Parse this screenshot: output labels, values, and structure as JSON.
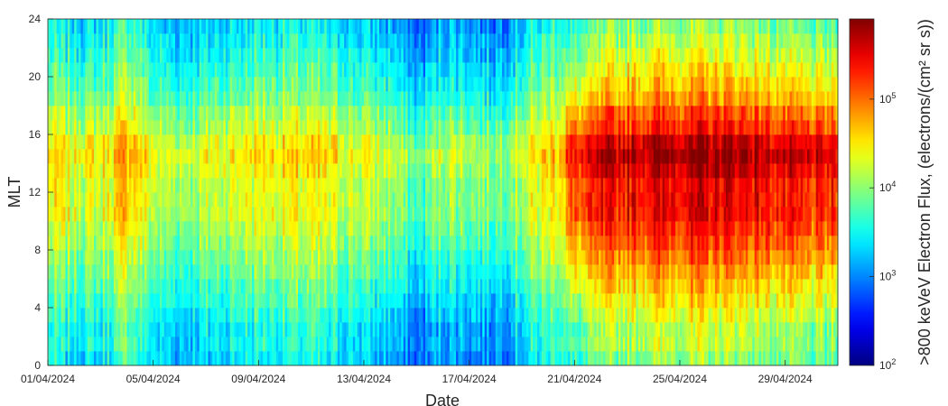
{
  "chart_data": {
    "type": "heatmap",
    "xlabel": "Date",
    "ylabel": "MLT",
    "colorbar_label": ">800 keVeV Electron Flux, (electrons/(cm² sr s))",
    "x_range": [
      "01/04/2024",
      "01/05/2024"
    ],
    "x_ticks": [
      "01/04/2024",
      "05/04/2024",
      "09/04/2024",
      "13/04/2024",
      "17/04/2024",
      "21/04/2024",
      "25/04/2024",
      "29/04/2024"
    ],
    "y_range": [
      0,
      24
    ],
    "y_ticks": [
      0,
      4,
      8,
      12,
      16,
      20,
      24
    ],
    "color_scale": "log",
    "colormap": "jet",
    "clim": [
      100,
      800000
    ],
    "colorbar_ticks": [
      {
        "base": "10",
        "exp": "2",
        "value": 100
      },
      {
        "base": "10",
        "exp": "3",
        "value": 1000
      },
      {
        "base": "10",
        "exp": "4",
        "value": 10000
      },
      {
        "base": "10",
        "exp": "5",
        "value": 100000
      }
    ],
    "time_resolution_hours": 2,
    "mlt_bins": [
      "0-1",
      "1-2",
      "2-3",
      "3-4",
      "4-5",
      "5-6",
      "6-7",
      "7-8",
      "8-9",
      "9-10",
      "10-11",
      "11-12",
      "12-13",
      "13-14",
      "14-15",
      "15-16",
      "16-17",
      "17-18",
      "18-19",
      "19-20",
      "20-21",
      "21-22",
      "22-23",
      "23-24"
    ],
    "log10_flux_profile_by_mlt": [
      3.4,
      3.5,
      3.5,
      3.6,
      3.7,
      3.8,
      3.9,
      4.0,
      4.1,
      4.2,
      4.3,
      4.3,
      4.3,
      4.4,
      4.5,
      4.4,
      4.2,
      4.1,
      3.9,
      3.8,
      3.7,
      3.6,
      3.5,
      3.4
    ],
    "log10_flux_daily_mean_dayside": [
      4.0,
      3.9,
      3.9,
      4.3,
      3.8,
      3.7,
      3.8,
      3.9,
      4.0,
      4.0,
      4.0,
      3.9,
      3.8,
      3.7,
      3.3,
      3.7,
      3.6,
      3.5,
      3.8,
      4.1,
      4.4,
      4.7,
      4.8,
      4.9,
      4.9,
      4.9,
      4.9,
      4.8,
      4.7,
      4.6
    ],
    "colors": {
      "low": "#00008f",
      "mid": "#7fff7f",
      "high": "#800000"
    }
  }
}
